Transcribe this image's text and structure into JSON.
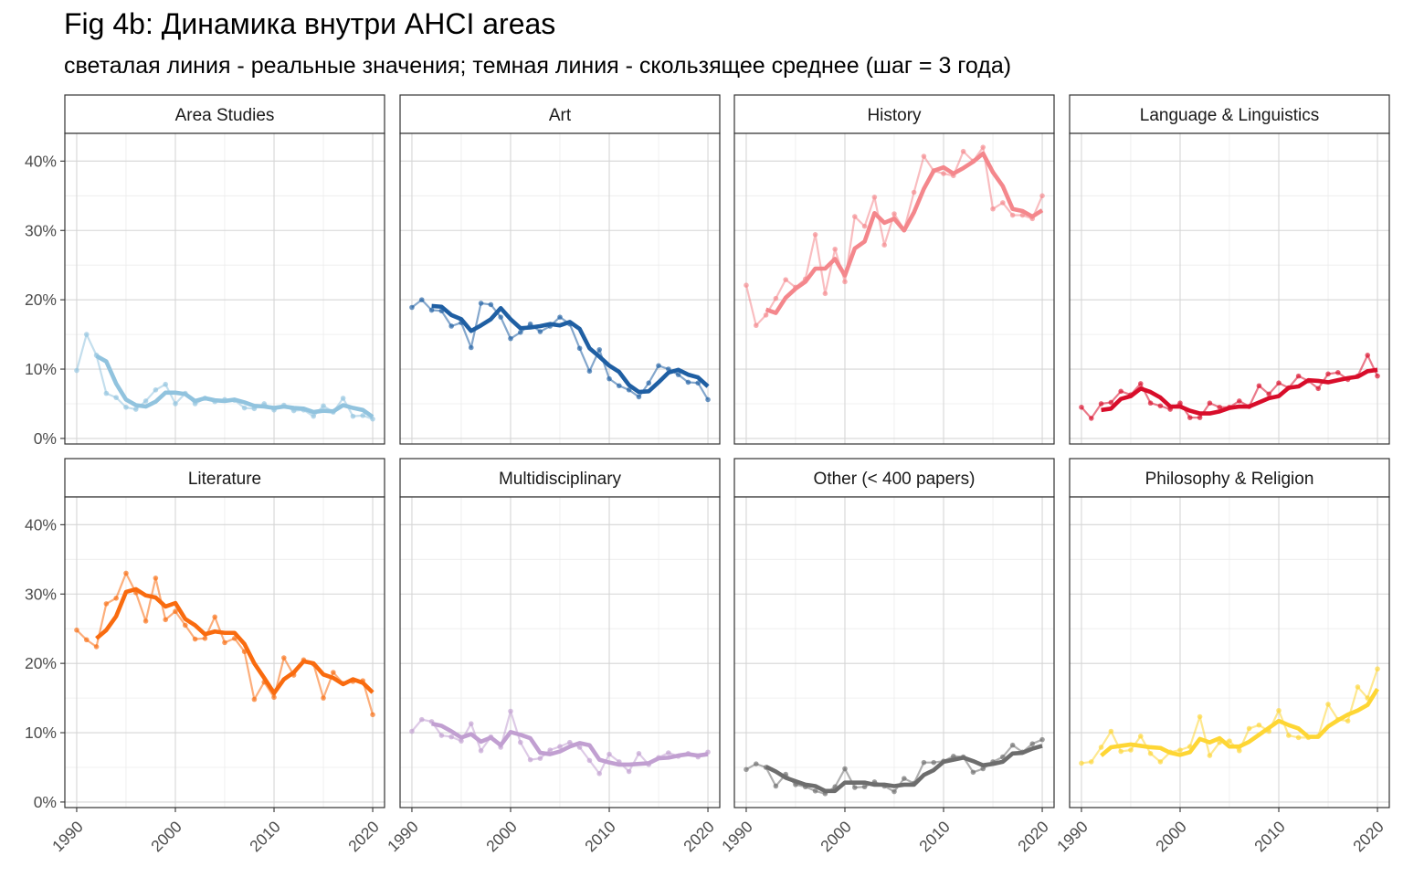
{
  "title": "Fig 4b: Динамика внутри AHCI areas",
  "subtitle": "светалая линия - реальные значения; темная линия - скользящее среднее (шаг = 3 года)",
  "chart_data": {
    "type": "line",
    "x_ticks": [
      1990,
      2000,
      2010,
      2020
    ],
    "y_ticks": [
      0,
      10,
      20,
      30,
      40
    ],
    "y_tick_labels": [
      "0%",
      "10%",
      "20%",
      "30%",
      "40%"
    ],
    "xlim": [
      1988.8,
      2021.2
    ],
    "ylim": [
      -0.8,
      44
    ],
    "grid": true,
    "facets": [
      {
        "name": "Area Studies",
        "color": "#91c3de",
        "years": [
          1990,
          1991,
          1992,
          1993,
          1994,
          1995,
          1996,
          1997,
          1998,
          1999,
          2000,
          2001,
          2002,
          2003,
          2004,
          2005,
          2006,
          2007,
          2008,
          2009,
          2010,
          2011,
          2012,
          2013,
          2014,
          2015,
          2016,
          2017,
          2018,
          2019,
          2020
        ],
        "values": [
          9.8,
          15.0,
          12.0,
          6.5,
          5.9,
          4.5,
          4.2,
          5.4,
          7.0,
          7.8,
          5.0,
          6.5,
          5.0,
          5.8,
          5.3,
          5.6,
          5.5,
          4.4,
          4.3,
          5.0,
          4.1,
          4.8,
          4.0,
          4.1,
          3.2,
          4.7,
          3.8,
          5.8,
          3.2,
          3.3,
          2.8
        ],
        "smooth": [
          null,
          null,
          11.9,
          11.1,
          7.9,
          5.6,
          4.8,
          4.6,
          5.3,
          6.6,
          6.6,
          6.4,
          5.4,
          5.8,
          5.5,
          5.4,
          5.6,
          5.2,
          4.7,
          4.6,
          4.4,
          4.6,
          4.4,
          4.3,
          3.8,
          4.0,
          3.9,
          4.8,
          4.4,
          4.1,
          3.1
        ]
      },
      {
        "name": "Art",
        "color": "#1f5fa3",
        "years": [
          1990,
          1991,
          1992,
          1993,
          1994,
          1995,
          1996,
          1997,
          1998,
          1999,
          2000,
          2001,
          2002,
          2003,
          2004,
          2005,
          2006,
          2007,
          2008,
          2009,
          2010,
          2011,
          2012,
          2013,
          2014,
          2015,
          2016,
          2017,
          2018,
          2019,
          2020
        ],
        "values": [
          18.9,
          20.0,
          18.5,
          18.4,
          16.2,
          16.7,
          13.1,
          19.5,
          19.3,
          17.5,
          14.4,
          15.3,
          16.5,
          15.4,
          16.2,
          17.5,
          16.5,
          13.0,
          9.7,
          12.8,
          8.6,
          7.6,
          7.0,
          6.0,
          8.0,
          10.5,
          10.0,
          9.2,
          8.1,
          8.0,
          5.6
        ],
        "smooth": [
          null,
          null,
          19.1,
          19.0,
          17.8,
          17.2,
          15.5,
          16.3,
          17.2,
          18.8,
          17.2,
          15.9,
          16.0,
          16.2,
          16.5,
          16.3,
          16.8,
          15.8,
          13.0,
          11.8,
          10.5,
          9.6,
          7.7,
          6.7,
          6.8,
          8.1,
          9.5,
          9.9,
          9.2,
          8.8,
          7.5
        ]
      },
      {
        "name": "History",
        "color": "#f4878c",
        "years": [
          1990,
          1991,
          1992,
          1993,
          1994,
          1995,
          1996,
          1997,
          1998,
          1999,
          2000,
          2001,
          2002,
          2003,
          2004,
          2005,
          2006,
          2007,
          2008,
          2009,
          2010,
          2011,
          2012,
          2013,
          2014,
          2015,
          2016,
          2017,
          2018,
          2019,
          2020
        ],
        "values": [
          22.1,
          16.3,
          17.8,
          20.2,
          22.9,
          21.8,
          23.0,
          29.4,
          20.9,
          27.3,
          22.6,
          32.0,
          30.6,
          34.8,
          27.9,
          32.4,
          30.1,
          35.5,
          40.7,
          38.6,
          38.2,
          37.9,
          41.4,
          40.0,
          42.0,
          33.1,
          34.0,
          32.2,
          32.2,
          31.7,
          35.0
        ],
        "smooth": [
          null,
          null,
          18.6,
          18.1,
          20.3,
          21.6,
          22.6,
          24.5,
          24.5,
          25.9,
          23.5,
          27.4,
          28.4,
          32.5,
          31.1,
          31.7,
          30.0,
          32.6,
          36.0,
          38.6,
          39.1,
          38.2,
          39.0,
          39.9,
          41.1,
          38.4,
          36.4,
          33.1,
          32.8,
          32.0,
          32.9
        ]
      },
      {
        "name": "Language & Linguistics",
        "color": "#d80d2a",
        "years": [
          1990,
          1991,
          1992,
          1993,
          1994,
          1995,
          1996,
          1997,
          1998,
          1999,
          2000,
          2001,
          2002,
          2003,
          2004,
          2005,
          2006,
          2007,
          2008,
          2009,
          2010,
          2011,
          2012,
          2013,
          2014,
          2015,
          2016,
          2017,
          2018,
          2019,
          2020
        ],
        "values": [
          4.5,
          2.9,
          5.0,
          5.2,
          6.8,
          6.3,
          7.9,
          5.1,
          4.7,
          4.2,
          5.1,
          3.0,
          3.0,
          5.1,
          4.5,
          4.5,
          5.4,
          4.6,
          7.6,
          6.4,
          8.0,
          7.3,
          9.0,
          8.3,
          7.2,
          9.3,
          9.5,
          8.5,
          9.0,
          12.0,
          9.0
        ],
        "smooth": [
          null,
          null,
          4.1,
          4.3,
          5.7,
          6.1,
          7.2,
          6.7,
          5.9,
          4.6,
          4.6,
          4.0,
          3.6,
          3.6,
          3.9,
          4.4,
          4.6,
          4.6,
          5.2,
          5.8,
          6.1,
          7.3,
          7.5,
          8.4,
          8.3,
          8.1,
          8.4,
          8.7,
          8.9,
          9.7,
          9.9
        ]
      },
      {
        "name": "Literature",
        "color": "#f96b0f",
        "years": [
          1990,
          1991,
          1992,
          1993,
          1994,
          1995,
          1996,
          1997,
          1998,
          1999,
          2000,
          2001,
          2002,
          2003,
          2004,
          2005,
          2006,
          2007,
          2008,
          2009,
          2010,
          2011,
          2012,
          2013,
          2014,
          2015,
          2016,
          2017,
          2018,
          2019,
          2020
        ],
        "values": [
          24.8,
          23.4,
          22.4,
          28.6,
          29.4,
          33.0,
          30.2,
          26.1,
          32.3,
          26.3,
          27.5,
          25.5,
          23.5,
          23.6,
          26.7,
          23.0,
          23.6,
          21.7,
          14.8,
          17.3,
          15.1,
          20.8,
          18.3,
          20.5,
          19.9,
          15.0,
          18.7,
          17.1,
          17.4,
          17.5,
          12.6
        ],
        "smooth": [
          null,
          null,
          23.6,
          24.8,
          26.8,
          30.3,
          30.7,
          29.8,
          29.5,
          28.2,
          28.7,
          26.4,
          25.5,
          24.2,
          24.6,
          24.4,
          24.4,
          22.8,
          20.0,
          17.9,
          15.7,
          17.7,
          18.7,
          20.3,
          20.0,
          18.4,
          17.9,
          17.0,
          17.7,
          17.2,
          15.8
        ]
      },
      {
        "name": "Multidisciplinary",
        "color": "#c19fd1",
        "years": [
          1990,
          1991,
          1992,
          1993,
          1994,
          1995,
          1996,
          1997,
          1998,
          1999,
          2000,
          2001,
          2002,
          2003,
          2004,
          2005,
          2006,
          2007,
          2008,
          2009,
          2010,
          2011,
          2012,
          2013,
          2014,
          2015,
          2016,
          2017,
          2018,
          2019,
          2020
        ],
        "values": [
          10.2,
          11.9,
          11.6,
          9.6,
          9.4,
          8.8,
          11.3,
          7.4,
          9.4,
          7.9,
          13.1,
          8.6,
          6.1,
          6.3,
          7.5,
          8.0,
          8.6,
          7.9,
          6.0,
          4.1,
          6.9,
          5.8,
          4.4,
          7.0,
          5.4,
          6.4,
          7.1,
          6.6,
          7.0,
          6.5,
          7.2
        ],
        "smooth": [
          null,
          null,
          11.3,
          11.0,
          10.2,
          9.3,
          9.8,
          8.7,
          9.3,
          8.2,
          10.1,
          9.7,
          9.2,
          7.1,
          6.9,
          7.3,
          8.0,
          8.5,
          8.2,
          6.1,
          5.7,
          5.4,
          5.4,
          5.5,
          5.6,
          6.3,
          6.4,
          6.7,
          6.9,
          6.7,
          6.9
        ]
      },
      {
        "name": "Other (< 400 papers)",
        "color": "#6d6d6d",
        "years": [
          1990,
          1991,
          1992,
          1993,
          1994,
          1995,
          1996,
          1997,
          1998,
          1999,
          2000,
          2001,
          2002,
          2003,
          2004,
          2005,
          2006,
          2007,
          2008,
          2009,
          2010,
          2011,
          2012,
          2013,
          2014,
          2015,
          2016,
          2017,
          2018,
          2019,
          2020
        ],
        "values": [
          4.7,
          5.5,
          5.0,
          2.3,
          4.0,
          2.5,
          2.2,
          1.6,
          1.2,
          2.2,
          4.8,
          2.1,
          2.2,
          2.9,
          2.3,
          1.5,
          3.4,
          2.7,
          5.7,
          5.7,
          5.9,
          6.6,
          6.5,
          4.3,
          4.8,
          5.8,
          6.5,
          8.2,
          7.2,
          8.4,
          9.0
        ],
        "smooth": [
          null,
          null,
          5.1,
          4.4,
          3.5,
          3.0,
          2.5,
          2.3,
          1.6,
          1.6,
          2.8,
          2.8,
          2.8,
          2.5,
          2.5,
          2.3,
          2.5,
          2.5,
          3.9,
          4.6,
          5.8,
          6.1,
          6.4,
          5.9,
          5.3,
          5.5,
          5.8,
          7.0,
          7.1,
          7.7,
          8.1
        ]
      },
      {
        "name": "Philosophy & Religion",
        "color": "#fed634",
        "years": [
          1990,
          1991,
          1992,
          1993,
          1994,
          1995,
          1996,
          1997,
          1998,
          1999,
          2000,
          2001,
          2002,
          2003,
          2004,
          2005,
          2006,
          2007,
          2008,
          2009,
          2010,
          2011,
          2012,
          2013,
          2014,
          2015,
          2016,
          2017,
          2018,
          2019,
          2020
        ],
        "values": [
          5.6,
          5.8,
          7.9,
          10.2,
          7.3,
          7.5,
          9.5,
          7.0,
          5.8,
          7.2,
          7.5,
          8.0,
          12.3,
          6.7,
          8.6,
          8.8,
          7.4,
          10.6,
          11.1,
          10.2,
          13.2,
          9.6,
          9.3,
          9.3,
          9.5,
          14.1,
          11.9,
          11.7,
          16.6,
          15.0,
          19.2
        ],
        "smooth": [
          null,
          null,
          6.7,
          7.9,
          8.1,
          8.3,
          8.1,
          7.9,
          7.8,
          7.1,
          6.8,
          7.2,
          9.1,
          8.6,
          9.2,
          8.0,
          8.0,
          8.7,
          9.7,
          10.7,
          11.7,
          11.1,
          10.6,
          9.4,
          9.4,
          10.9,
          11.8,
          12.6,
          13.2,
          14.0,
          16.3
        ]
      }
    ]
  }
}
